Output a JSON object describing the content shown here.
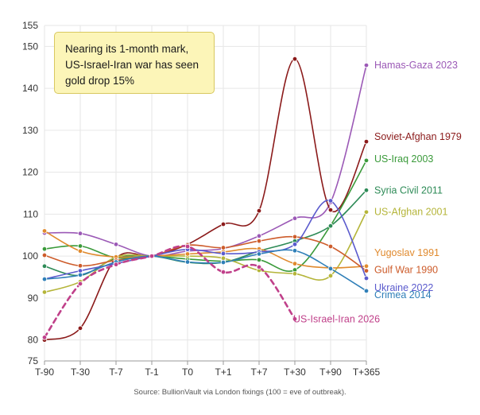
{
  "chart_data": {
    "type": "line",
    "x": [
      "T-90",
      "T-30",
      "T-7",
      "T-1",
      "T0",
      "T+1",
      "T+7",
      "T+30",
      "T+90",
      "T+365"
    ],
    "ylim": [
      75,
      155
    ],
    "yticks": [
      75,
      80,
      90,
      100,
      110,
      120,
      130,
      140,
      150,
      155
    ],
    "grid": true,
    "annotation": [
      "Nearing its 1-month mark,",
      "US-Israel-Iran war has seen",
      "gold drop 15%"
    ],
    "source": "Source: BullionVault via London fixings (100 = eve of outbreak).",
    "series": [
      {
        "name": "Hamas-Gaza 2023",
        "color": "#9b59b6",
        "dashed": false,
        "values": [
          105.5,
          105.4,
          102.8,
          100,
          101.2,
          101.8,
          104.8,
          109.0,
          112.8,
          145.5
        ]
      },
      {
        "name": "Soviet-Afghan 1979",
        "color": "#8b1a1a",
        "dashed": false,
        "values": [
          80.0,
          82.8,
          99.5,
          100,
          102.8,
          107.6,
          110.8,
          147.0,
          111.0,
          127.3
        ]
      },
      {
        "name": "US-Iraq 2003",
        "color": "#3a9a3a",
        "dashed": false,
        "values": [
          101.7,
          102.4,
          99.6,
          100,
          99.3,
          98.8,
          99.1,
          96.7,
          107.3,
          122.8
        ]
      },
      {
        "name": "Syria Civil 2011",
        "color": "#2e8b57",
        "dashed": false,
        "values": [
          97.6,
          95.4,
          99.5,
          100,
          98.5,
          98.5,
          101.2,
          103.6,
          107.2,
          115.7
        ]
      },
      {
        "name": "US-Afghan 2001",
        "color": "#b5b53a",
        "dashed": false,
        "values": [
          91.4,
          93.9,
          99.8,
          100,
          100.0,
          99.5,
          96.6,
          95.8,
          95.3,
          110.5
        ]
      },
      {
        "name": "Yugoslav 1991",
        "color": "#e08a2e",
        "dashed": false,
        "values": [
          106.0,
          101.2,
          99.8,
          100,
          100.5,
          101.0,
          101.7,
          98.2,
          97.2,
          97.6
        ]
      },
      {
        "name": "Gulf War 1990",
        "color": "#cd5c2b",
        "dashed": false,
        "values": [
          100.2,
          97.7,
          99.0,
          100,
          102.6,
          102.0,
          103.6,
          104.6,
          102.3,
          96.5
        ]
      },
      {
        "name": "Ukraine 2022",
        "color": "#5a5acd",
        "dashed": false,
        "values": [
          94.5,
          96.5,
          98.2,
          100,
          101.6,
          100.6,
          101.0,
          102.8,
          113.2,
          94.7
        ]
      },
      {
        "name": "Crimea 2014",
        "color": "#2f7fb8",
        "dashed": false,
        "values": [
          94.5,
          95.5,
          98.6,
          100,
          98.6,
          98.5,
          100.5,
          101.3,
          97.0,
          91.7
        ]
      },
      {
        "name": "US-Israel-Iran 2026",
        "color": "#c0408a",
        "dashed": true,
        "values": [
          80.6,
          93.4,
          98.0,
          100,
          102.3,
          96.2,
          97.4,
          85.0,
          null,
          null
        ]
      }
    ]
  }
}
